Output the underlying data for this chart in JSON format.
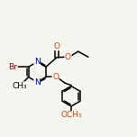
{
  "bg_color": "#f5f5f0",
  "bond_color": "#000000",
  "atom_colors": {
    "Br": "#8B0000",
    "N": "#0000aa",
    "O": "#cc4400",
    "C": "#000000"
  },
  "font_size": 6.5,
  "line_width": 1.1
}
